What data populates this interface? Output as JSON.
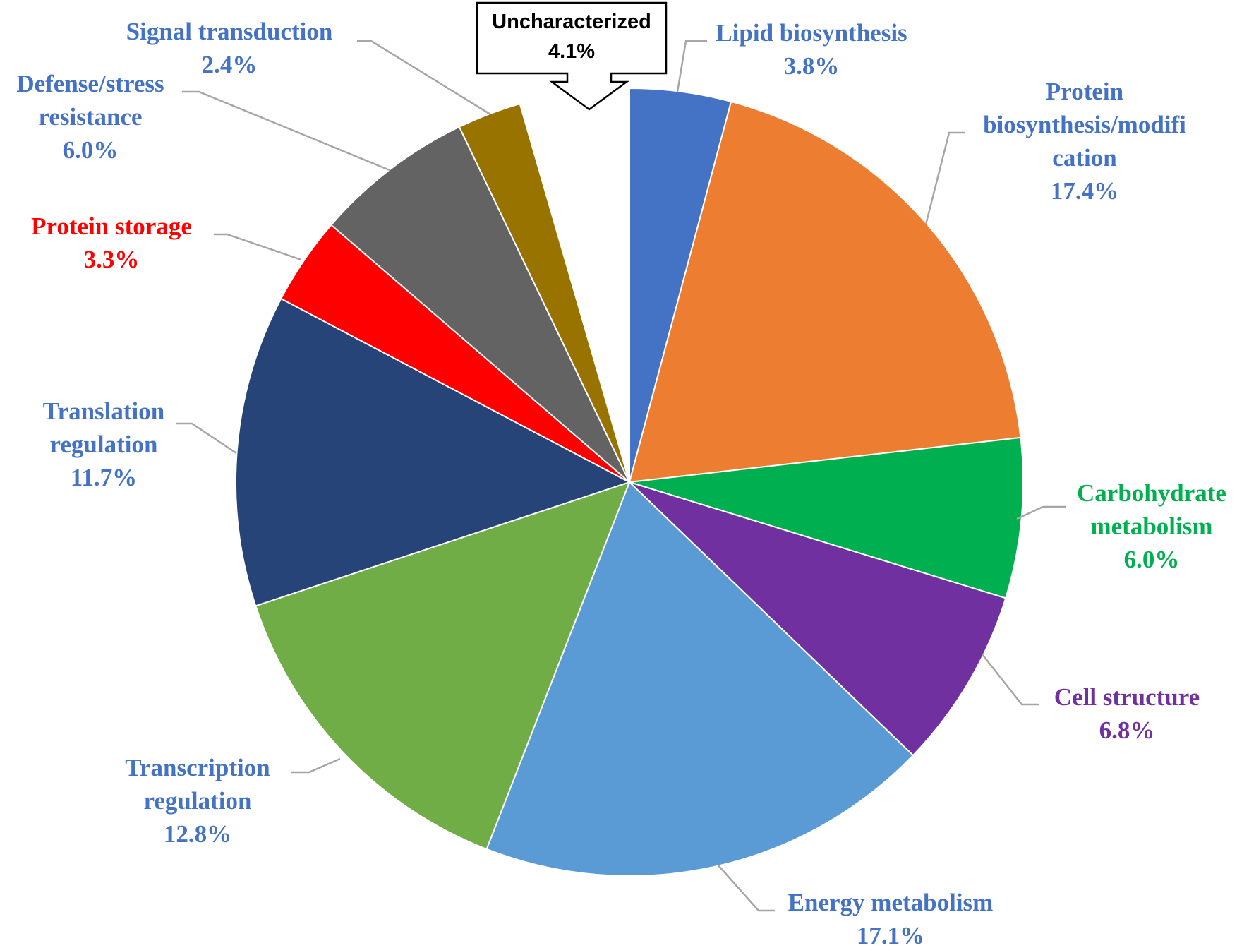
{
  "chart_data": {
    "type": "pie",
    "title": "",
    "slices": [
      {
        "label_lines": [
          "Lipid  biosynthesis"
        ],
        "pct_label": "3.8%",
        "value": 3.8,
        "color": "#4472c4",
        "label_color": "#4472c4"
      },
      {
        "label_lines": [
          "Protein",
          "biosynthesis/modifi",
          "cation"
        ],
        "pct_label": "17.4%",
        "value": 17.4,
        "color": "#ed7d31",
        "label_color": "#4472c4"
      },
      {
        "label_lines": [
          "Carbohydrate",
          "metabolism"
        ],
        "pct_label": "6.0%",
        "value": 6.0,
        "color": "#00b050",
        "label_color": "#00b050"
      },
      {
        "label_lines": [
          "Cell structure"
        ],
        "pct_label": "6.8%",
        "value": 6.8,
        "color": "#7030a0",
        "label_color": "#7030a0"
      },
      {
        "label_lines": [
          "Energy metabolism"
        ],
        "pct_label": "17.1%",
        "value": 17.1,
        "color": "#5b9bd5",
        "label_color": "#4472c4"
      },
      {
        "label_lines": [
          "Transcription",
          "regulation"
        ],
        "pct_label": "12.8%",
        "value": 12.8,
        "color": "#70ad47",
        "label_color": "#4472c4"
      },
      {
        "label_lines": [
          "Translation",
          "regulation"
        ],
        "pct_label": "11.7%",
        "value": 11.7,
        "color": "#264478",
        "label_color": "#4472c4"
      },
      {
        "label_lines": [
          "Protein storage"
        ],
        "pct_label": "3.3%",
        "value": 3.3,
        "color": "#ff0000",
        "label_color": "#ff0000"
      },
      {
        "label_lines": [
          "Defense/stress",
          "resistance"
        ],
        "pct_label": "6.0%",
        "value": 6.0,
        "color": "#636363",
        "label_color": "#4472c4"
      },
      {
        "label_lines": [
          "Signal transduction"
        ],
        "pct_label": "2.4%",
        "value": 2.4,
        "color": "#997300",
        "label_color": "#4472c4"
      },
      {
        "label_lines": [
          "Uncharacterized"
        ],
        "pct_label": "4.1%",
        "value": 4.1,
        "color": "#ffffff",
        "label_color": "#000000"
      }
    ]
  }
}
